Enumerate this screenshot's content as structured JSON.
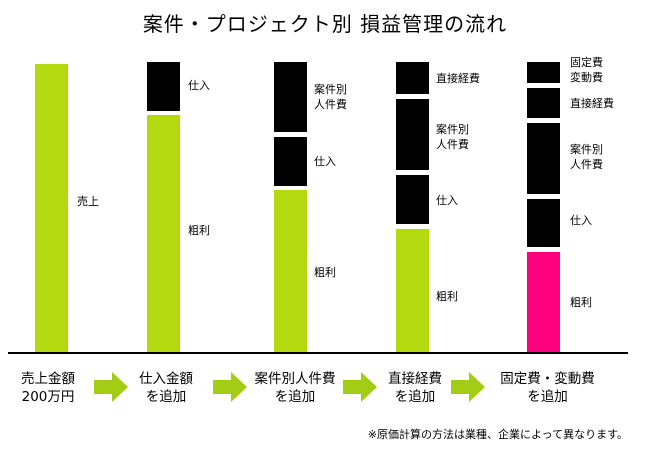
{
  "title": "案件・プロジェクト別 損益管理の流れ",
  "colors": {
    "profit_green": "#b5d90f",
    "cost_black": "#000000",
    "final_profit_pink": "#ff007f",
    "arrow_green": "#a3cc14"
  },
  "bars": [
    {
      "labels": [
        "売上"
      ]
    },
    {
      "labels": [
        "仕入",
        "粗利"
      ]
    },
    {
      "labels": [
        "案件別\n人件費",
        "仕入",
        "粗利"
      ]
    },
    {
      "labels": [
        "直接経費",
        "案件別\n人件費",
        "仕入",
        "粗利"
      ]
    },
    {
      "labels": [
        "固定費\n変動費",
        "直接経費",
        "案件別\n人件費",
        "仕入",
        "粗利"
      ]
    }
  ],
  "steps": [
    "売上金額\n200万円",
    "仕入金額\nを追加",
    "案件別人件費\nを追加",
    "直接経費\nを追加",
    "固定費・変動費\nを追加"
  ],
  "note": "※原価計算の方法は業種、企業によって異なります。"
}
